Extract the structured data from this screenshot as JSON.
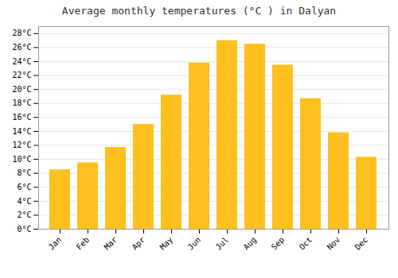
{
  "chart_data": {
    "type": "bar",
    "title": "Average monthly temperatures (°C ) in Dalyan",
    "categories": [
      "Jan",
      "Feb",
      "Mar",
      "Apr",
      "May",
      "Jun",
      "Jul",
      "Aug",
      "Sep",
      "Oct",
      "Nov",
      "Dec"
    ],
    "values": [
      8.5,
      9.5,
      11.7,
      15.0,
      19.2,
      23.8,
      27.0,
      26.5,
      23.5,
      18.7,
      13.8,
      10.3
    ],
    "color": "#FFC020",
    "ylim": [
      0,
      29
    ],
    "yticks": [
      {
        "value": 0,
        "label": "0°C"
      },
      {
        "value": 2,
        "label": "2°C"
      },
      {
        "value": 4,
        "label": "4°C"
      },
      {
        "value": 6,
        "label": "6°C"
      },
      {
        "value": 8,
        "label": "8°C"
      },
      {
        "value": 10,
        "label": "10°C"
      },
      {
        "value": 12,
        "label": "12°C"
      },
      {
        "value": 14,
        "label": "14°C"
      },
      {
        "value": 16,
        "label": "16°C"
      },
      {
        "value": 18,
        "label": "18°C"
      },
      {
        "value": 20,
        "label": "20°C"
      },
      {
        "value": 22,
        "label": "22°C"
      },
      {
        "value": 24,
        "label": "24°C"
      },
      {
        "value": 26,
        "label": "26°C"
      },
      {
        "value": 28,
        "label": "28°C"
      }
    ],
    "grid": true
  }
}
